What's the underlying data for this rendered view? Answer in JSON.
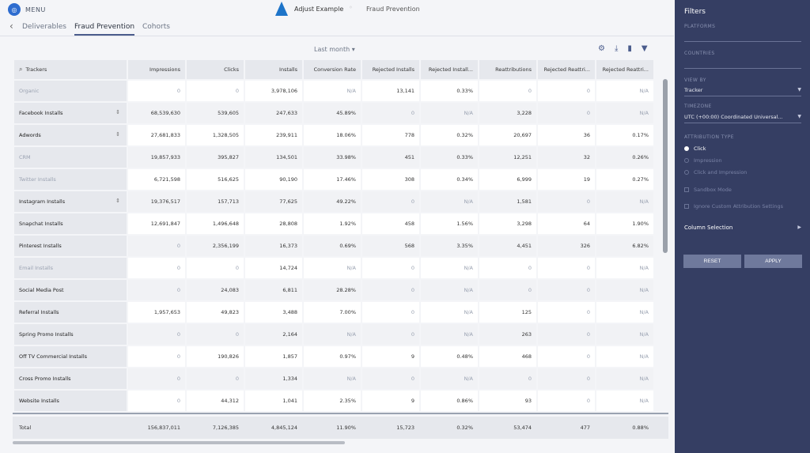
{
  "header": {
    "menu_label": "MENU",
    "app_name": "Adjust Example",
    "separator": "◦",
    "page_name": "Fraud Prevention"
  },
  "nav": {
    "back_glyph": "‹",
    "tabs": [
      {
        "label": "Deliverables",
        "active": false
      },
      {
        "label": "Fraud Prevention",
        "active": true
      },
      {
        "label": "Cohorts",
        "active": false
      }
    ]
  },
  "toolbar": {
    "period": "Last month ▾",
    "icons": [
      "settings-icon",
      "download-icon",
      "chart-icon",
      "filter-icon"
    ]
  },
  "table": {
    "search_placeholder": "Trackers",
    "columns": [
      "Impressions",
      "Clicks",
      "Installs",
      "Conversion Rate",
      "Rejected Installs",
      "Rejected Install...",
      "Reattributions",
      "Rejected Reattri...",
      "Rejected Reattri..."
    ],
    "rows": [
      {
        "name": "Organic",
        "dim": true,
        "pin": false,
        "cells": [
          "0",
          "0",
          "3,978,106",
          "N/A",
          "13,141",
          "0.33%",
          "0",
          "0",
          "N/A"
        ]
      },
      {
        "name": "Facebook Installs",
        "dim": false,
        "pin": true,
        "cells": [
          "68,539,630",
          "539,605",
          "247,633",
          "45.89%",
          "0",
          "N/A",
          "3,228",
          "0",
          "N/A"
        ]
      },
      {
        "name": "Adwords",
        "dim": false,
        "pin": true,
        "cells": [
          "27,681,833",
          "1,328,505",
          "239,911",
          "18.06%",
          "778",
          "0.32%",
          "20,697",
          "36",
          "0.17%"
        ]
      },
      {
        "name": "CRM",
        "dim": true,
        "pin": false,
        "cells": [
          "19,857,933",
          "395,827",
          "134,501",
          "33.98%",
          "451",
          "0.33%",
          "12,251",
          "32",
          "0.26%"
        ]
      },
      {
        "name": "Twitter Installs",
        "dim": true,
        "pin": false,
        "cells": [
          "6,721,598",
          "516,625",
          "90,190",
          "17.46%",
          "308",
          "0.34%",
          "6,999",
          "19",
          "0.27%"
        ]
      },
      {
        "name": "Instagram Installs",
        "dim": false,
        "pin": true,
        "cells": [
          "19,376,517",
          "157,713",
          "77,625",
          "49.22%",
          "0",
          "N/A",
          "1,581",
          "0",
          "N/A"
        ]
      },
      {
        "name": "Snapchat Installs",
        "dim": false,
        "pin": false,
        "cells": [
          "12,691,847",
          "1,496,648",
          "28,808",
          "1.92%",
          "458",
          "1.56%",
          "3,298",
          "64",
          "1.90%"
        ]
      },
      {
        "name": "Pinterest Installs",
        "dim": false,
        "pin": false,
        "cells": [
          "0",
          "2,356,199",
          "16,373",
          "0.69%",
          "568",
          "3.35%",
          "4,451",
          "326",
          "6.82%"
        ]
      },
      {
        "name": "Email Installs",
        "dim": true,
        "pin": false,
        "cells": [
          "0",
          "0",
          "14,724",
          "N/A",
          "0",
          "N/A",
          "0",
          "0",
          "N/A"
        ]
      },
      {
        "name": "Social Media Post",
        "dim": false,
        "pin": false,
        "cells": [
          "0",
          "24,083",
          "6,811",
          "28.28%",
          "0",
          "N/A",
          "0",
          "0",
          "N/A"
        ]
      },
      {
        "name": "Referral Installs",
        "dim": false,
        "pin": false,
        "cells": [
          "1,957,653",
          "49,823",
          "3,488",
          "7.00%",
          "0",
          "N/A",
          "125",
          "0",
          "N/A"
        ]
      },
      {
        "name": "Spring Promo Installs",
        "dim": false,
        "pin": false,
        "cells": [
          "0",
          "0",
          "2,164",
          "N/A",
          "0",
          "N/A",
          "263",
          "0",
          "N/A"
        ]
      },
      {
        "name": "Off TV Commercial Installs",
        "dim": false,
        "pin": false,
        "cells": [
          "0",
          "190,826",
          "1,857",
          "0.97%",
          "9",
          "0.48%",
          "468",
          "0",
          "N/A"
        ]
      },
      {
        "name": "Cross Promo Installs",
        "dim": false,
        "pin": false,
        "cells": [
          "0",
          "0",
          "1,334",
          "N/A",
          "0",
          "N/A",
          "0",
          "0",
          "N/A"
        ]
      },
      {
        "name": "Website Installs",
        "dim": false,
        "pin": false,
        "cells": [
          "0",
          "44,312",
          "1,041",
          "2.35%",
          "9",
          "0.86%",
          "93",
          "0",
          "N/A"
        ]
      }
    ],
    "total": {
      "name": "Total",
      "cells": [
        "156,837,011",
        "7,126,385",
        "4,845,124",
        "11.90%",
        "15,723",
        "0.32%",
        "53,474",
        "477",
        "0.88%"
      ]
    }
  },
  "filters": {
    "title": "Filters",
    "platforms_label": "PLATFORMS",
    "countries_label": "COUNTRIES",
    "view_by_label": "VIEW BY",
    "view_by_value": "Tracker",
    "timezone_label": "TIMEZONE",
    "timezone_value": "UTC (+00:00) Coordinated Universal...",
    "attribution_label": "ATTRIBUTION TYPE",
    "attribution_options": [
      {
        "label": "Click",
        "selected": true
      },
      {
        "label": "Impression",
        "selected": false
      },
      {
        "label": "Click and Impression",
        "selected": false
      }
    ],
    "checkboxes": [
      "Sandbox Mode",
      "Ignore Custom Attribution Settings"
    ],
    "column_selection": "Column Selection",
    "reset_label": "RESET",
    "apply_label": "APPLY"
  }
}
